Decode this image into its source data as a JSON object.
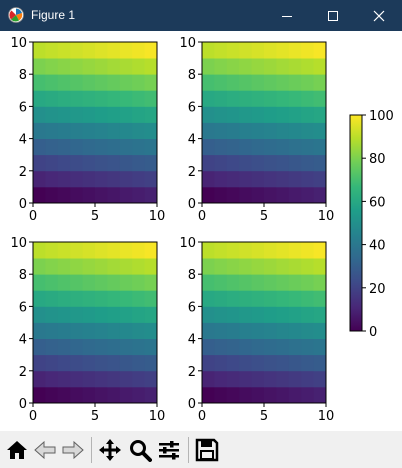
{
  "window": {
    "title": "Figure 1",
    "icons": [
      "matplotlib-icon",
      "minimize-icon",
      "maximize-icon",
      "close-icon"
    ]
  },
  "toolbar": {
    "items": [
      "home-icon",
      "back-icon",
      "forward-icon",
      "pan-icon",
      "zoom-icon",
      "configure-subplots-icon",
      "save-icon"
    ]
  },
  "chart_data": [
    {
      "type": "heatmap",
      "position": "top-left",
      "xlim": [
        0,
        10
      ],
      "ylim": [
        0,
        10
      ],
      "x_ticks": [
        "0",
        "5",
        "10"
      ],
      "y_ticks": [
        "0",
        "2",
        "4",
        "6",
        "8",
        "10"
      ],
      "rows": 10,
      "cols": 10,
      "values": "row_index*10 + col_index (0-99)"
    },
    {
      "type": "heatmap",
      "position": "top-right",
      "xlim": [
        0,
        10
      ],
      "ylim": [
        0,
        10
      ],
      "x_ticks": [
        "0",
        "5",
        "10"
      ],
      "y_ticks": [
        "0",
        "2",
        "4",
        "6",
        "8",
        "10"
      ],
      "rows": 10,
      "cols": 10,
      "values": "row_index*10 + col_index (0-99)"
    },
    {
      "type": "heatmap",
      "position": "bottom-left",
      "xlim": [
        0,
        10
      ],
      "ylim": [
        0,
        10
      ],
      "x_ticks": [
        "0",
        "5",
        "10"
      ],
      "y_ticks": [
        "0",
        "2",
        "4",
        "6",
        "8",
        "10"
      ],
      "rows": 10,
      "cols": 10,
      "values": "row_index*10 + col_index (0-99)"
    },
    {
      "type": "heatmap",
      "position": "bottom-right",
      "xlim": [
        0,
        10
      ],
      "ylim": [
        0,
        10
      ],
      "x_ticks": [
        "0",
        "5",
        "10"
      ],
      "y_ticks": [
        "0",
        "2",
        "4",
        "6",
        "8",
        "10"
      ],
      "rows": 10,
      "cols": 10,
      "values": "row_index*10 + col_index (0-99)"
    }
  ],
  "colorbar": {
    "colormap": "viridis",
    "range": [
      0,
      100
    ],
    "ticks": [
      "0",
      "20",
      "40",
      "60",
      "80",
      "100"
    ]
  }
}
